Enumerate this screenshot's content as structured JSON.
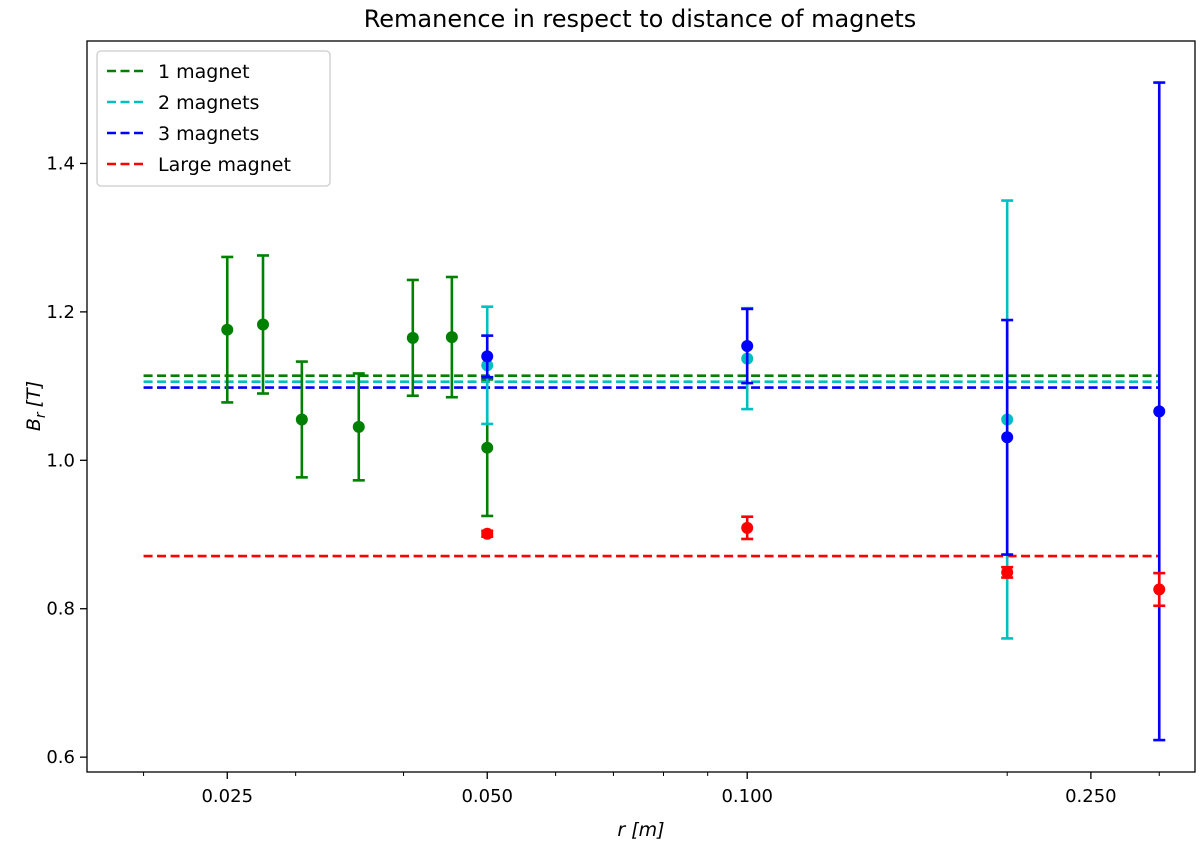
{
  "chart_data": {
    "type": "scatter",
    "title": "Remanence in respect to distance of magnets",
    "xlabel_base": "r",
    "xlabel_unit": "[m]",
    "ylabel_base": "B",
    "ylabel_sub": "r",
    "ylabel_unit": "[T]",
    "xscale": "log",
    "xlim": [
      0.0172,
      0.33
    ],
    "ylim": [
      0.58,
      1.565
    ],
    "x_ticks": [
      {
        "value": 0.025,
        "label": "0.025"
      },
      {
        "value": 0.05,
        "label": "0.050"
      },
      {
        "value": 0.1,
        "label": "0.100"
      },
      {
        "value": 0.25,
        "label": "0.250"
      }
    ],
    "x_minor_ticks": [
      0.02,
      0.03,
      0.04,
      0.06,
      0.07,
      0.08,
      0.09,
      0.2,
      0.3
    ],
    "y_ticks": [
      {
        "value": 0.6,
        "label": "0.6"
      },
      {
        "value": 0.8,
        "label": "0.8"
      },
      {
        "value": 1.0,
        "label": "1.0"
      },
      {
        "value": 1.2,
        "label": "1.2"
      },
      {
        "value": 1.4,
        "label": "1.4"
      }
    ],
    "grid": false,
    "legend_position": "top-left",
    "series": [
      {
        "name": "1 magnet",
        "color": "#008000",
        "mean": 1.114,
        "points": [
          {
            "x": 0.025,
            "y": 1.176,
            "err": 0.098
          },
          {
            "x": 0.0275,
            "y": 1.183,
            "err": 0.093
          },
          {
            "x": 0.0305,
            "y": 1.055,
            "err": 0.078
          },
          {
            "x": 0.0355,
            "y": 1.045,
            "err": 0.072
          },
          {
            "x": 0.041,
            "y": 1.165,
            "err": 0.078
          },
          {
            "x": 0.0455,
            "y": 1.166,
            "err": 0.081
          },
          {
            "x": 0.05,
            "y": 1.017,
            "err": 0.092
          }
        ]
      },
      {
        "name": "2 magnets",
        "color": "#00BFBF",
        "mean": 1.106,
        "points": [
          {
            "x": 0.05,
            "y": 1.128,
            "err": 0.079
          },
          {
            "x": 0.1,
            "y": 1.137,
            "err": 0.068
          },
          {
            "x": 0.2,
            "y": 1.055,
            "err": 0.295
          }
        ]
      },
      {
        "name": "3 magnets",
        "color": "#0000FF",
        "mean": 1.098,
        "points": [
          {
            "x": 0.05,
            "y": 1.14,
            "err": 0.028
          },
          {
            "x": 0.1,
            "y": 1.154,
            "err": 0.05
          },
          {
            "x": 0.2,
            "y": 1.031,
            "err": 0.158
          },
          {
            "x": 0.3,
            "y": 1.066,
            "err": 0.443
          }
        ]
      },
      {
        "name": "Large magnet",
        "color": "#FF0000",
        "mean": 0.871,
        "points": [
          {
            "x": 0.05,
            "y": 0.901,
            "err": 0.004
          },
          {
            "x": 0.1,
            "y": 0.909,
            "err": 0.015
          },
          {
            "x": 0.2,
            "y": 0.849,
            "err": 0.007
          },
          {
            "x": 0.3,
            "y": 0.826,
            "err": 0.022
          }
        ]
      }
    ]
  }
}
